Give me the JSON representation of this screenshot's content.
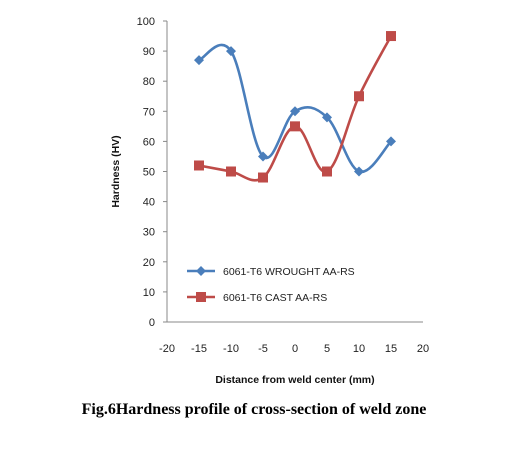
{
  "caption": "Fig.6Hardness profile of cross-section of weld zone",
  "chart_data": {
    "type": "line",
    "xlabel": "Distance from weld center (mm)",
    "ylabel": "Hardness (HV)",
    "xlim": [
      -20,
      20
    ],
    "ylim": [
      0,
      100
    ],
    "x_ticks": [
      -20,
      -15,
      -10,
      -5,
      0,
      5,
      10,
      15,
      20
    ],
    "y_ticks": [
      0,
      10,
      20,
      30,
      40,
      50,
      60,
      70,
      80,
      90,
      100
    ],
    "grid": false,
    "legend_position": "lower-left",
    "x": [
      -15,
      -10,
      -5,
      0,
      5,
      10,
      15
    ],
    "series": [
      {
        "name": "6061-T6 WROUGHT AA-RS",
        "values": [
          87,
          90,
          55,
          70,
          68,
          50,
          60
        ],
        "color": "#4a7ebb",
        "marker": "diamond"
      },
      {
        "name": "6061-T6 CAST AA-RS",
        "values": [
          52,
          50,
          48,
          65,
          50,
          75,
          95
        ],
        "color": "#be4b48",
        "marker": "square"
      }
    ]
  }
}
